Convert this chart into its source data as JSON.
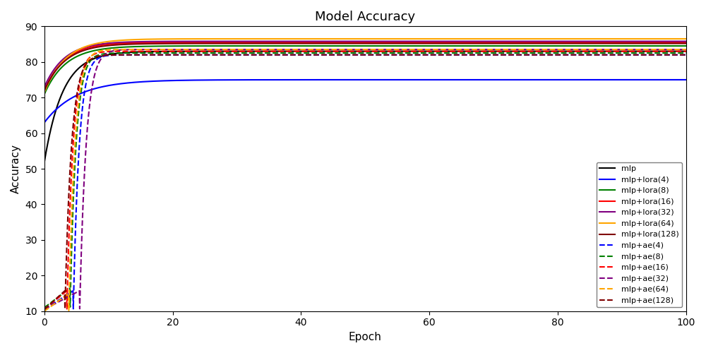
{
  "title": "Model Accuracy",
  "xlabel": "Epoch",
  "ylabel": "Accuracy",
  "ylim": [
    10,
    90
  ],
  "xlim": [
    0,
    100
  ],
  "figsize": [
    10,
    5
  ],
  "dpi": 100,
  "series": [
    {
      "label": "mlp",
      "color": "#000000",
      "linestyle": "-",
      "final": 83.0,
      "start": 52.0,
      "k": 0.35,
      "ae": false,
      "ae_warmup": 0
    },
    {
      "label": "mlp+lora(4)",
      "color": "#0000ff",
      "linestyle": "-",
      "final": 75.0,
      "start": 63.0,
      "k": 0.2,
      "ae": false,
      "ae_warmup": 0
    },
    {
      "label": "mlp+lora(8)",
      "color": "#008000",
      "linestyle": "-",
      "final": 84.5,
      "start": 71.0,
      "k": 0.3,
      "ae": false,
      "ae_warmup": 0
    },
    {
      "label": "mlp+lora(16)",
      "color": "#ff0000",
      "linestyle": "-",
      "final": 85.5,
      "start": 72.0,
      "k": 0.32,
      "ae": false,
      "ae_warmup": 0
    },
    {
      "label": "mlp+lora(32)",
      "color": "#800080",
      "linestyle": "-",
      "final": 85.8,
      "start": 73.0,
      "k": 0.32,
      "ae": false,
      "ae_warmup": 0
    },
    {
      "label": "mlp+lora(64)",
      "color": "#ffa500",
      "linestyle": "-",
      "final": 86.5,
      "start": 71.5,
      "k": 0.3,
      "ae": false,
      "ae_warmup": 0
    },
    {
      "label": "mlp+lora(128)",
      "color": "#800000",
      "linestyle": "-",
      "final": 85.2,
      "start": 72.0,
      "k": 0.31,
      "ae": false,
      "ae_warmup": 0
    },
    {
      "label": "mlp+ae(4)",
      "color": "#0000ff",
      "linestyle": "--",
      "final": 82.0,
      "start": 10.5,
      "k": 1.1,
      "ae": true,
      "ae_warmup": 4.5
    },
    {
      "label": "mlp+ae(8)",
      "color": "#008000",
      "linestyle": "--",
      "final": 82.5,
      "start": 11.0,
      "k": 1.1,
      "ae": true,
      "ae_warmup": 4.0
    },
    {
      "label": "mlp+ae(16)",
      "color": "#ff0000",
      "linestyle": "--",
      "final": 83.0,
      "start": 10.5,
      "k": 1.05,
      "ae": true,
      "ae_warmup": 3.5
    },
    {
      "label": "mlp+ae(32)",
      "color": "#800080",
      "linestyle": "--",
      "final": 83.5,
      "start": 10.5,
      "k": 1.0,
      "ae": true,
      "ae_warmup": 5.5
    },
    {
      "label": "mlp+ae(64)",
      "color": "#ffa500",
      "linestyle": "--",
      "final": 83.5,
      "start": 10.0,
      "k": 1.05,
      "ae": true,
      "ae_warmup": 3.8
    },
    {
      "label": "mlp+ae(128)",
      "color": "#800000",
      "linestyle": "--",
      "final": 82.0,
      "start": 10.5,
      "k": 1.0,
      "ae": true,
      "ae_warmup": 3.2
    }
  ]
}
